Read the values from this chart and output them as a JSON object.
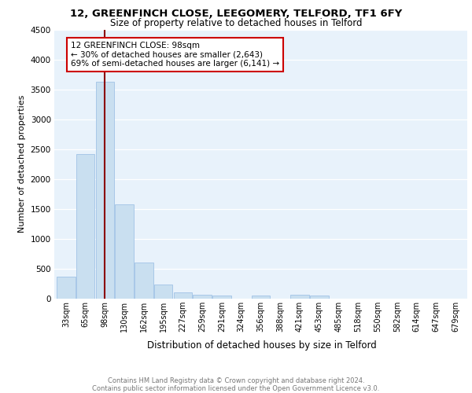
{
  "title": "12, GREENFINCH CLOSE, LEEGOMERY, TELFORD, TF1 6FY",
  "subtitle": "Size of property relative to detached houses in Telford",
  "xlabel": "Distribution of detached houses by size in Telford",
  "ylabel": "Number of detached properties",
  "footer": "Contains HM Land Registry data © Crown copyright and database right 2024.\nContains public sector information licensed under the Open Government Licence v3.0.",
  "annotation_title": "12 GREENFINCH CLOSE: 98sqm",
  "annotation_line1": "← 30% of detached houses are smaller (2,643)",
  "annotation_line2": "69% of semi-detached houses are larger (6,141) →",
  "bar_color": "#c9dff0",
  "bar_edge_color": "#a8c8e8",
  "vline_color": "#8b0000",
  "grid_color": "#ffffff",
  "bg_color": "#e8f2fb",
  "categories": [
    "33sqm",
    "65sqm",
    "98sqm",
    "130sqm",
    "162sqm",
    "195sqm",
    "227sqm",
    "259sqm",
    "291sqm",
    "324sqm",
    "356sqm",
    "388sqm",
    "421sqm",
    "453sqm",
    "485sqm",
    "518sqm",
    "550sqm",
    "582sqm",
    "614sqm",
    "647sqm",
    "679sqm"
  ],
  "values": [
    370,
    2420,
    3630,
    1580,
    600,
    240,
    105,
    65,
    50,
    0,
    50,
    0,
    60,
    50,
    0,
    0,
    0,
    0,
    0,
    0,
    0
  ],
  "ylim": [
    0,
    4500
  ],
  "yticks": [
    0,
    500,
    1000,
    1500,
    2000,
    2500,
    3000,
    3500,
    4000,
    4500
  ]
}
